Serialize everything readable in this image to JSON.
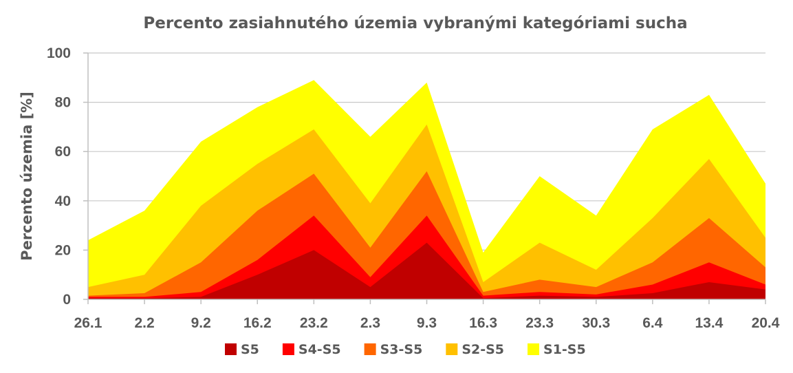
{
  "chart_data": {
    "type": "area",
    "title": "Percento zasiahnutého územia vybranými kategóriami sucha",
    "xlabel": "",
    "ylabel": "Percento územia  [%]",
    "ylim": [
      0,
      100
    ],
    "yticks": [
      0,
      20,
      40,
      60,
      80,
      100
    ],
    "grid": true,
    "legend": "bottom",
    "categories": [
      "26.1",
      "2.2",
      "9.2",
      "16.2",
      "23.2",
      "2.3",
      "9.3",
      "16.3",
      "23.3",
      "30.3",
      "6.4",
      "13.4",
      "20.4"
    ],
    "series": [
      {
        "name": "S1-S5",
        "color": "#FFFF00",
        "values": [
          24,
          36,
          64,
          78,
          89,
          66,
          88,
          19,
          50,
          34,
          69,
          83,
          47
        ]
      },
      {
        "name": "S2-S5",
        "color": "#FFC000",
        "values": [
          5,
          10,
          38,
          55,
          69,
          39,
          71,
          7,
          23,
          12,
          33,
          57,
          25
        ]
      },
      {
        "name": "S3-S5",
        "color": "#FF6600",
        "values": [
          1.5,
          2.5,
          15,
          36,
          51,
          21,
          52,
          3,
          8,
          5,
          15,
          33,
          13
        ]
      },
      {
        "name": "S4-S5",
        "color": "#FF0000",
        "values": [
          1,
          1,
          3,
          16,
          34,
          9,
          34,
          1.5,
          3,
          2,
          6,
          15,
          6
        ]
      },
      {
        "name": "S5",
        "color": "#C00000",
        "values": [
          0.5,
          0.5,
          1,
          10,
          20,
          5,
          23,
          0.5,
          1.5,
          1,
          2.5,
          7,
          4
        ]
      }
    ],
    "legend_order": [
      "S5",
      "S4-S5",
      "S3-S5",
      "S2-S5",
      "S1-S5"
    ]
  },
  "axis_color": "#bfbfbf",
  "text_color": "#595959"
}
